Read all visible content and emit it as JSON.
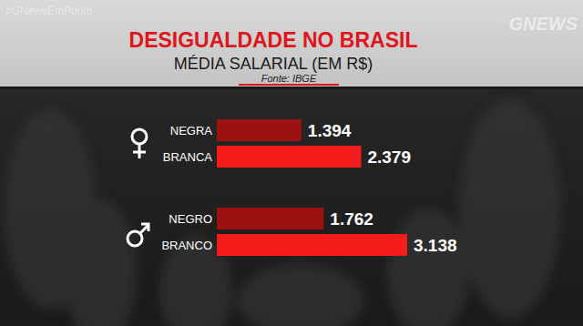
{
  "chart_data": {
    "type": "bar",
    "orientation": "horizontal",
    "title": "DESIGUALDADE NO BRASIL",
    "subtitle": "MÉDIA SALARIAL (EM R$)",
    "source": "Fonte: IBGE",
    "annotations": [
      "#GNewsEmPonto",
      "GNEWS"
    ],
    "categories": [
      "NEGRA",
      "BRANCA",
      "NEGRO",
      "BRANCO"
    ],
    "values": [
      1394,
      2379,
      1762,
      3138
    ],
    "value_labels": [
      "1.394",
      "2.379",
      "1.762",
      "3.138"
    ],
    "colors": [
      "#9c1212",
      "#f51c1c",
      "#9c1212",
      "#f51c1c"
    ],
    "xlim": [
      0,
      5000
    ],
    "data_labels": true,
    "tick_labels": false,
    "grid": false
  }
}
